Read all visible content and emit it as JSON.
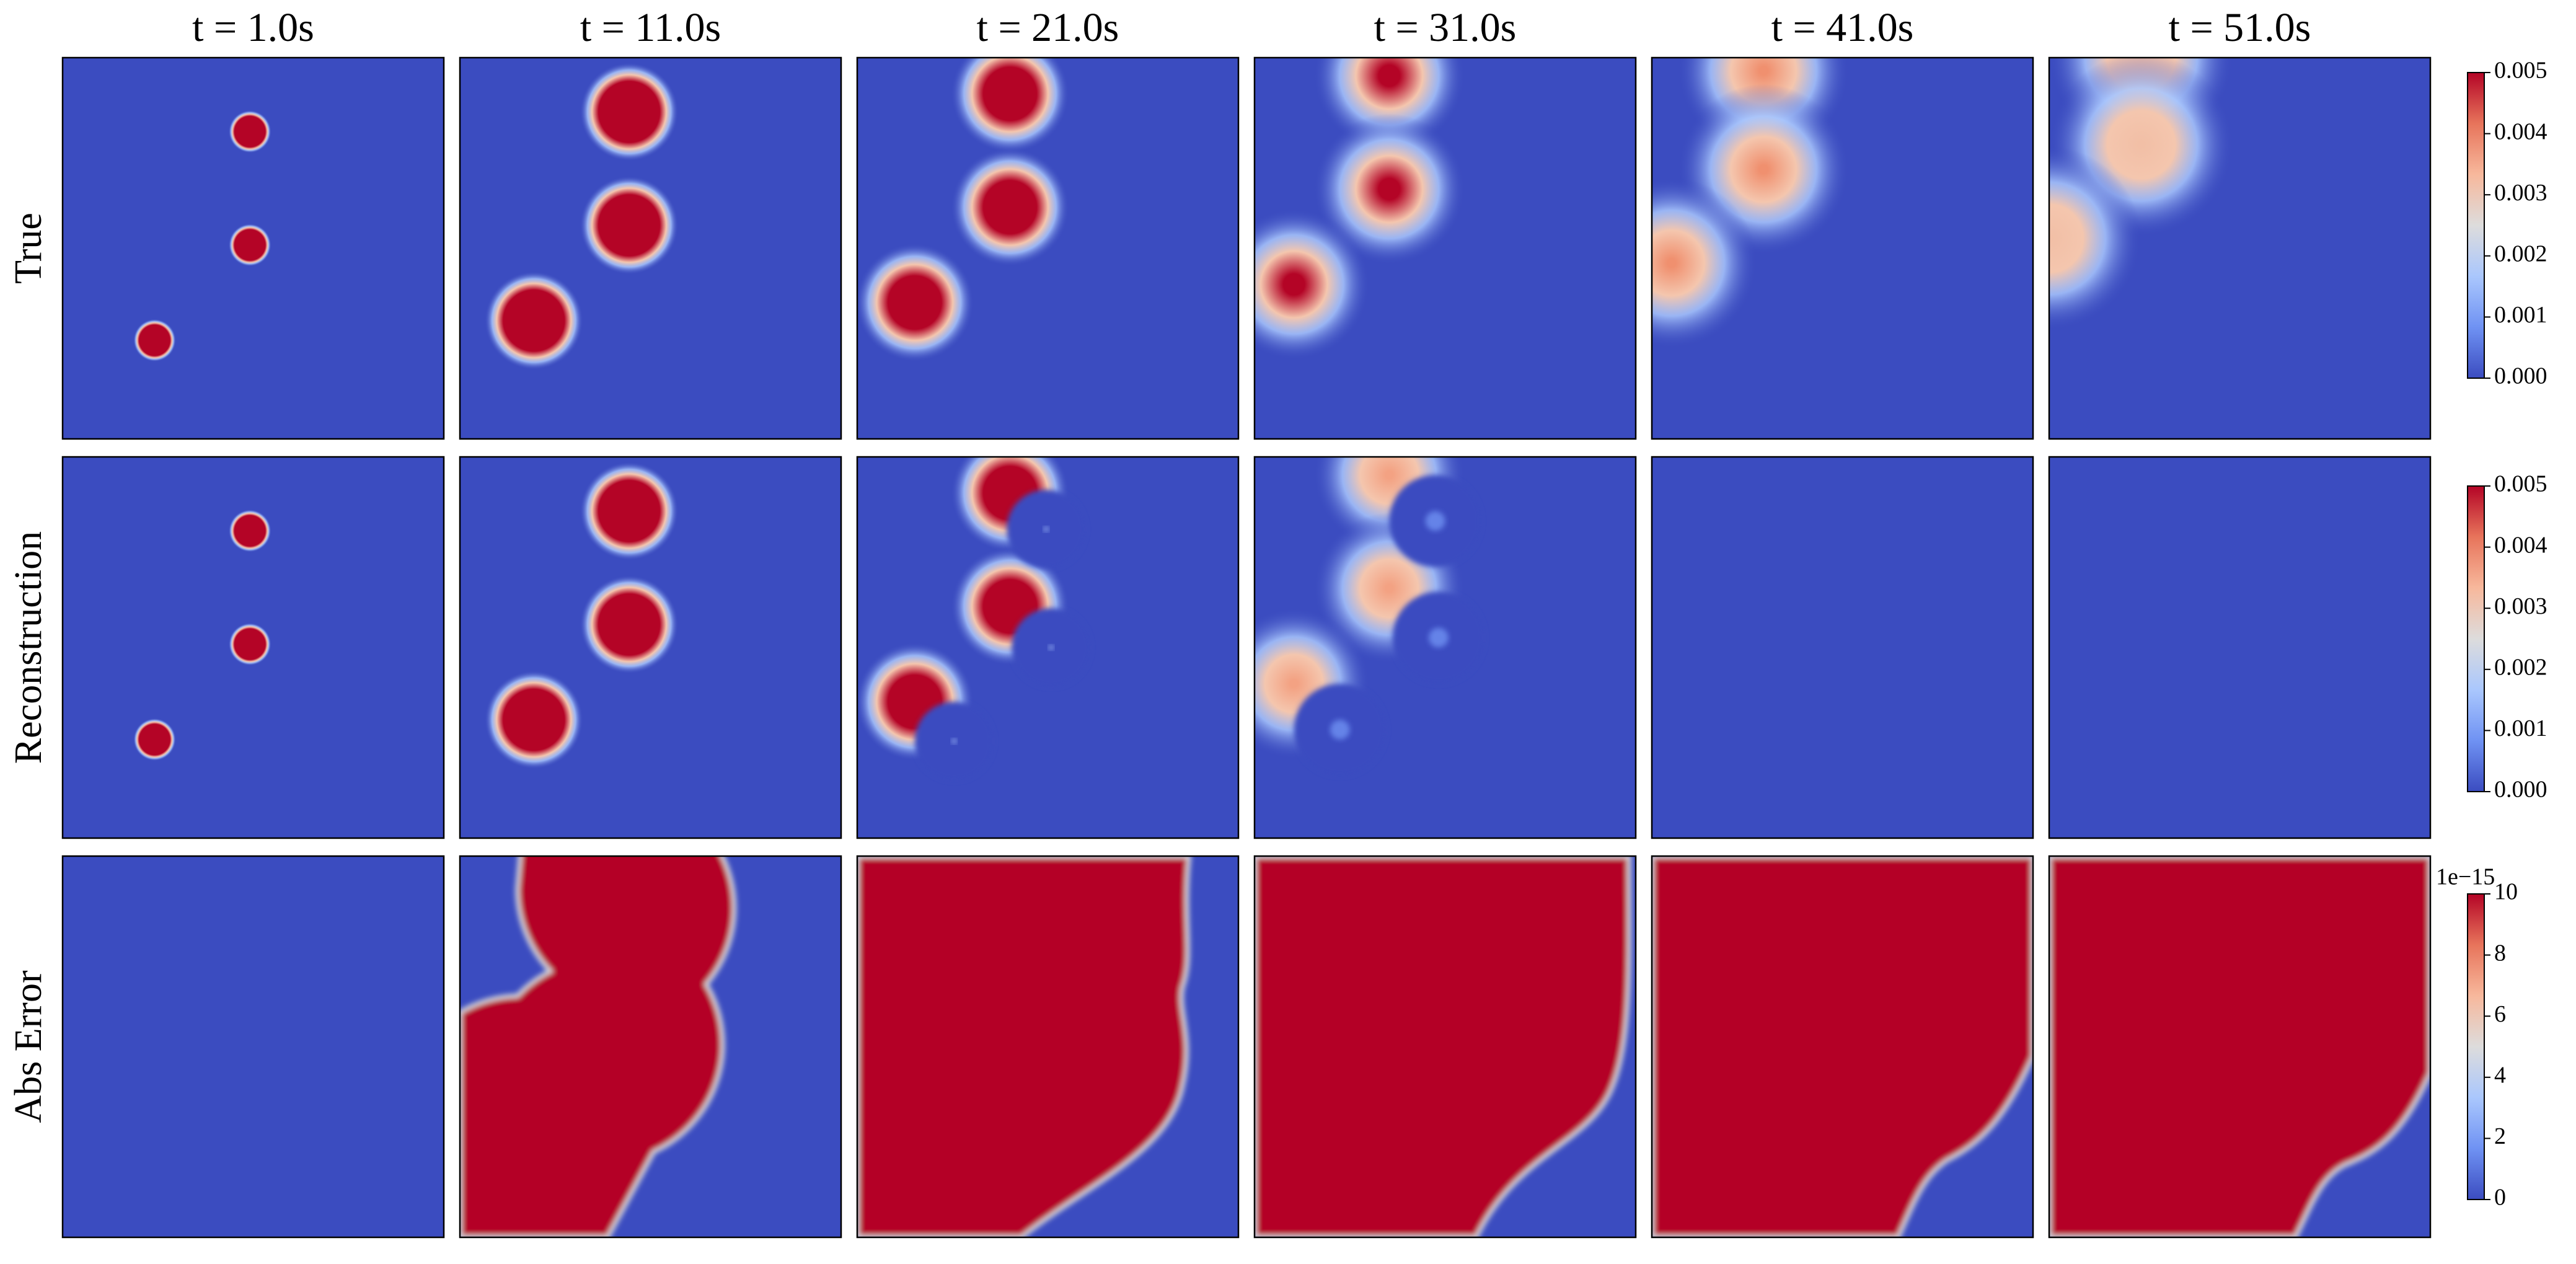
{
  "chart_data": {
    "type": "heatmap",
    "columns": [
      "t = 1.0s",
      "t = 11.0s",
      "t = 21.0s",
      "t = 31.0s",
      "t = 41.0s",
      "t = 51.0s"
    ],
    "rows": [
      "True",
      "Reconstruction",
      "Abs Error"
    ],
    "colormap": [
      "#3b4cc0",
      "#6f92f3",
      "#aac7fd",
      "#dddcdc",
      "#f7b89c",
      "#e7745b",
      "#b40426"
    ],
    "colorbars": [
      {
        "lim": [
          0,
          0.005
        ],
        "ticks": [
          {
            "value": 0,
            "label": "0.000"
          },
          {
            "value": 0.001,
            "label": "0.001"
          },
          {
            "value": 0.002,
            "label": "0.002"
          },
          {
            "value": 0.003,
            "label": "0.003"
          },
          {
            "value": 0.004,
            "label": "0.004"
          },
          {
            "value": 0.005,
            "label": "0.005"
          }
        ]
      },
      {
        "lim": [
          0,
          0.005
        ],
        "ticks": [
          {
            "value": 0,
            "label": "0.000"
          },
          {
            "value": 0.001,
            "label": "0.001"
          },
          {
            "value": 0.002,
            "label": "0.002"
          },
          {
            "value": 0.003,
            "label": "0.003"
          },
          {
            "value": 0.004,
            "label": "0.004"
          },
          {
            "value": 0.005,
            "label": "0.005"
          }
        ]
      },
      {
        "lim": [
          0,
          10
        ],
        "ticks": [
          0,
          2,
          4,
          6,
          8,
          10
        ],
        "offset_text": "1e−15"
      }
    ]
  }
}
